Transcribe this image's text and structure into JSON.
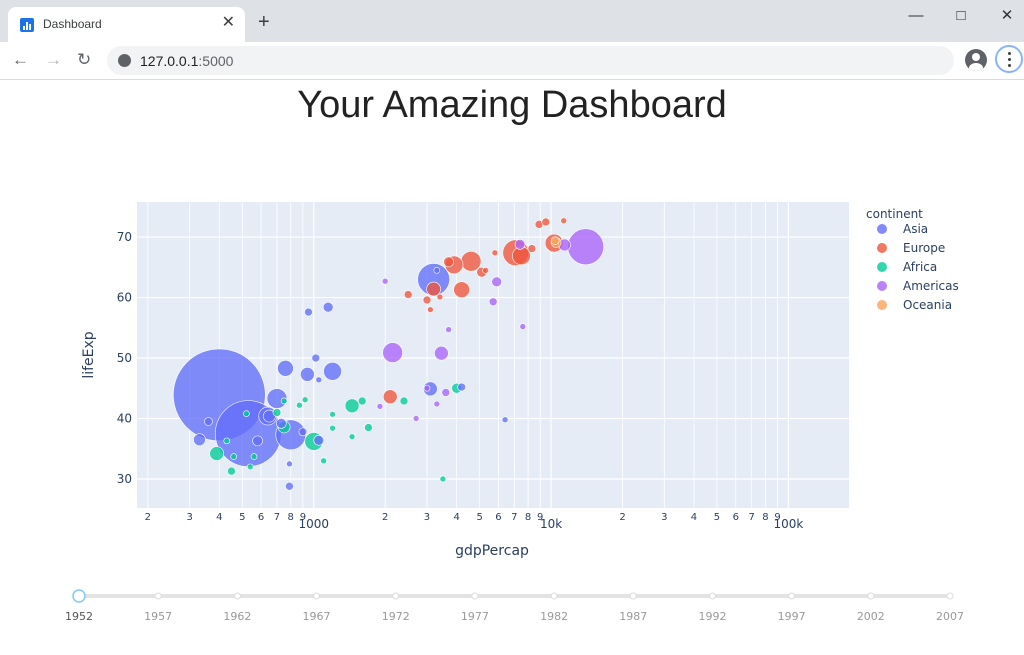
{
  "browser": {
    "tab_title": "Dashboard",
    "new_tab_symbol": "+",
    "close_symbol": "✕",
    "url_host": "127.0.0.1",
    "url_port": ":5000",
    "icons": [
      "chart-favicon-icon",
      "back-arrow-icon",
      "forward-arrow-icon",
      "reload-icon",
      "globe-icon",
      "profile-icon",
      "kebab-menu-icon",
      "minimize-icon",
      "maximize-icon",
      "close-window-icon"
    ]
  },
  "page": {
    "title": "Your Amazing Dashboard"
  },
  "chart_data": {
    "type": "scatter",
    "title": "",
    "xlabel": "gdpPercap",
    "ylabel": "lifeExp",
    "xscale": "log",
    "xlim": [
      180,
      180000
    ],
    "ylim": [
      25.2,
      75.8
    ],
    "grid": true,
    "x_tick_labels": [
      {
        "v": 200,
        "t": "2"
      },
      {
        "v": 300,
        "t": "3"
      },
      {
        "v": 400,
        "t": "4"
      },
      {
        "v": 500,
        "t": "5"
      },
      {
        "v": 600,
        "t": "6"
      },
      {
        "v": 700,
        "t": "7"
      },
      {
        "v": 800,
        "t": "8"
      },
      {
        "v": 900,
        "t": "9"
      },
      {
        "v": 1000,
        "t": "1000"
      },
      {
        "v": 2000,
        "t": "2"
      },
      {
        "v": 3000,
        "t": "3"
      },
      {
        "v": 4000,
        "t": "4"
      },
      {
        "v": 5000,
        "t": "5"
      },
      {
        "v": 6000,
        "t": "6"
      },
      {
        "v": 7000,
        "t": "7"
      },
      {
        "v": 8000,
        "t": "8"
      },
      {
        "v": 9000,
        "t": "9"
      },
      {
        "v": 10000,
        "t": "10k"
      },
      {
        "v": 20000,
        "t": "2"
      },
      {
        "v": 30000,
        "t": "3"
      },
      {
        "v": 40000,
        "t": "4"
      },
      {
        "v": 50000,
        "t": "5"
      },
      {
        "v": 60000,
        "t": "6"
      },
      {
        "v": 70000,
        "t": "7"
      },
      {
        "v": 80000,
        "t": "8"
      },
      {
        "v": 90000,
        "t": "9"
      },
      {
        "v": 100000,
        "t": "100k"
      }
    ],
    "y_ticks": [
      30,
      40,
      50,
      60,
      70
    ],
    "legend": {
      "title": "continent",
      "placement": "right"
    },
    "series": [
      {
        "name": "Asia",
        "color": "#636efa",
        "points": [
          [
            400,
            43.9,
            46
          ],
          [
            530,
            37.5,
            33
          ],
          [
            3200,
            63,
            16
          ],
          [
            1200,
            47.8,
            9
          ],
          [
            640,
            40.4,
            9
          ],
          [
            800,
            37.3,
            15
          ],
          [
            760,
            48.3,
            8
          ],
          [
            1150,
            58.4,
            5
          ],
          [
            950,
            57.6,
            4
          ],
          [
            1020,
            50.0,
            4
          ],
          [
            940,
            47.3,
            7
          ],
          [
            1050,
            36.4,
            5
          ],
          [
            3100,
            44.9,
            7
          ],
          [
            4200,
            45.2,
            4
          ],
          [
            6400,
            39.8,
            3
          ],
          [
            3300,
            64.5,
            3
          ],
          [
            700,
            43.3,
            10
          ],
          [
            580,
            36.3,
            5
          ],
          [
            330,
            36.5,
            6
          ],
          [
            790,
            32.5,
            3
          ],
          [
            790,
            28.8,
            4
          ],
          [
            900,
            37.8,
            4
          ],
          [
            650,
            40.4,
            6
          ],
          [
            360,
            39.5,
            4
          ],
          [
            730,
            39.2,
            5
          ],
          [
            1050,
            46.4,
            3
          ]
        ]
      },
      {
        "name": "Europe",
        "color": "#ef553b",
        "points": [
          [
            4600,
            66.0,
            10
          ],
          [
            7100,
            67.4,
            13
          ],
          [
            7500,
            66.9,
            9
          ],
          [
            10300,
            69.0,
            9
          ],
          [
            8300,
            68.1,
            4
          ],
          [
            8900,
            72.1,
            4
          ],
          [
            9500,
            72.5,
            4
          ],
          [
            11300,
            72.7,
            3
          ],
          [
            3700,
            65.9,
            5
          ],
          [
            5100,
            64.2,
            5
          ],
          [
            5800,
            67.4,
            3
          ],
          [
            4200,
            61.3,
            8
          ],
          [
            3200,
            61.4,
            7
          ],
          [
            3000,
            59.6,
            4
          ],
          [
            2500,
            60.5,
            4
          ],
          [
            3400,
            60.1,
            3
          ],
          [
            3900,
            65.4,
            9
          ],
          [
            2100,
            43.6,
            7
          ],
          [
            3100,
            58.0,
            3
          ],
          [
            5300,
            64.5,
            3
          ]
        ]
      },
      {
        "name": "Africa",
        "color": "#00cc96",
        "points": [
          [
            1000,
            36.2,
            9
          ],
          [
            1450,
            42.1,
            7
          ],
          [
            390,
            34.2,
            7
          ],
          [
            450,
            31.3,
            4
          ],
          [
            1600,
            42.9,
            4
          ],
          [
            540,
            32.0,
            3
          ],
          [
            870,
            42.2,
            3
          ],
          [
            750,
            38.6,
            6
          ],
          [
            750,
            42.9,
            3
          ],
          [
            920,
            43.1,
            3
          ],
          [
            1200,
            38.4,
            3
          ],
          [
            1200,
            40.7,
            3
          ],
          [
            4000,
            45.0,
            5
          ],
          [
            3500,
            30.0,
            3
          ],
          [
            1100,
            33.0,
            3
          ],
          [
            1700,
            38.5,
            4
          ],
          [
            2400,
            42.9,
            4
          ],
          [
            430,
            36.3,
            3
          ],
          [
            700,
            41.0,
            4
          ],
          [
            1450,
            37.0,
            3
          ],
          [
            520,
            40.8,
            3
          ],
          [
            560,
            33.7,
            3
          ],
          [
            460,
            33.7,
            3
          ]
        ]
      },
      {
        "name": "Americas",
        "color": "#ab63fa",
        "points": [
          [
            13990,
            68.4,
            18
          ],
          [
            2150,
            50.9,
            10
          ],
          [
            3450,
            50.8,
            7
          ],
          [
            5900,
            62.6,
            5
          ],
          [
            7400,
            68.8,
            5
          ],
          [
            11400,
            68.7,
            6
          ],
          [
            5700,
            59.3,
            4
          ],
          [
            3700,
            54.7,
            3
          ],
          [
            2000,
            62.7,
            3
          ],
          [
            3000,
            45.0,
            3
          ],
          [
            7600,
            55.2,
            3
          ],
          [
            3600,
            44.3,
            4
          ],
          [
            1900,
            42.0,
            3
          ],
          [
            3300,
            42.4,
            3
          ],
          [
            2700,
            40.0,
            3
          ]
        ]
      },
      {
        "name": "Oceania",
        "color": "#ffa15a",
        "points": [
          [
            10500,
            69.1,
            5
          ],
          [
            10400,
            69.4,
            4
          ]
        ]
      }
    ]
  },
  "slider": {
    "years": [
      "1952",
      "1957",
      "1962",
      "1967",
      "1972",
      "1977",
      "1982",
      "1987",
      "1992",
      "1997",
      "2002",
      "2007"
    ],
    "selected_index": 0
  }
}
